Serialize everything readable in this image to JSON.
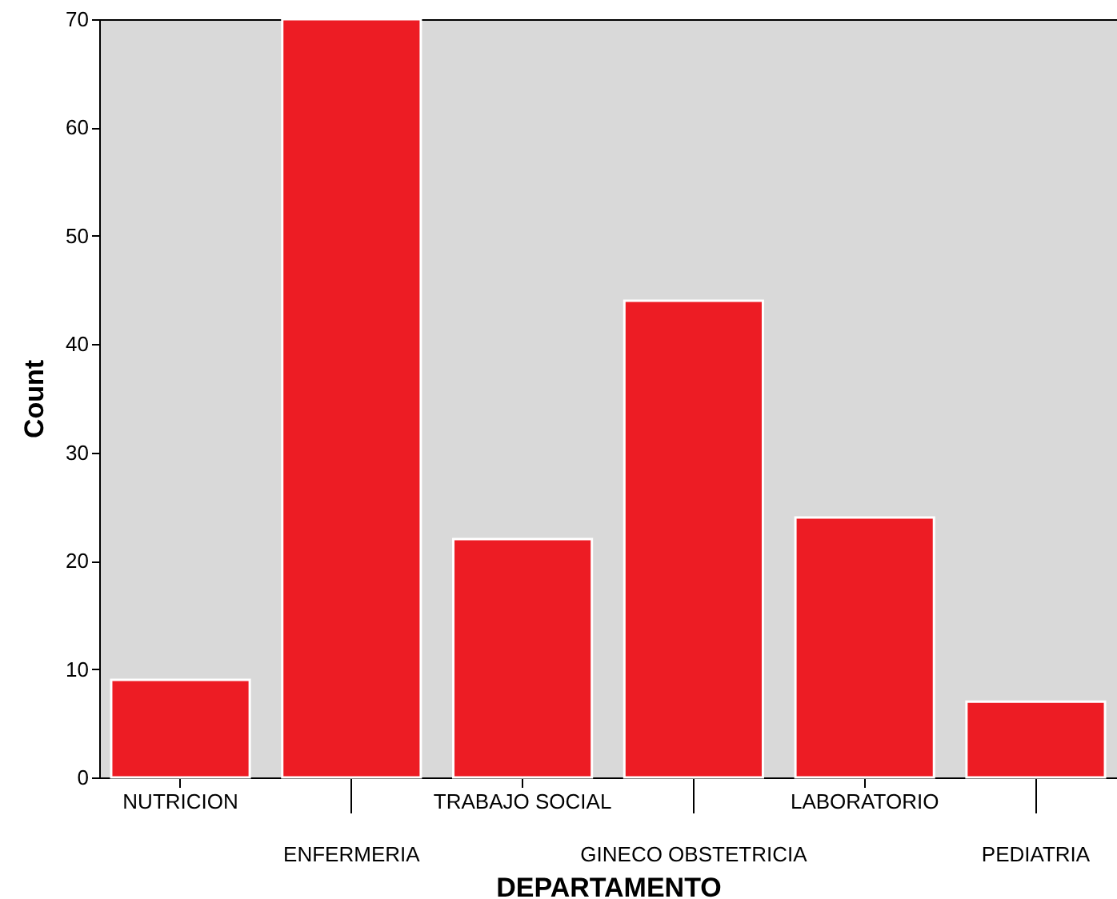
{
  "chart_data": {
    "type": "bar",
    "xlabel": "DEPARTAMENTO",
    "ylabel": "Count",
    "categories": [
      "NUTRICION",
      "ENFERMERIA",
      "TRABAJO SOCIAL",
      "GINECO OBSTETRICIA",
      "LABORATORIO",
      "PEDIATRIA"
    ],
    "values": [
      9,
      70,
      22,
      44,
      24,
      7
    ],
    "color": "#ed1c24",
    "ylim": [
      0,
      70
    ],
    "yticks": [
      0,
      10,
      20,
      30,
      40,
      50,
      60,
      70
    ],
    "grid": false
  }
}
